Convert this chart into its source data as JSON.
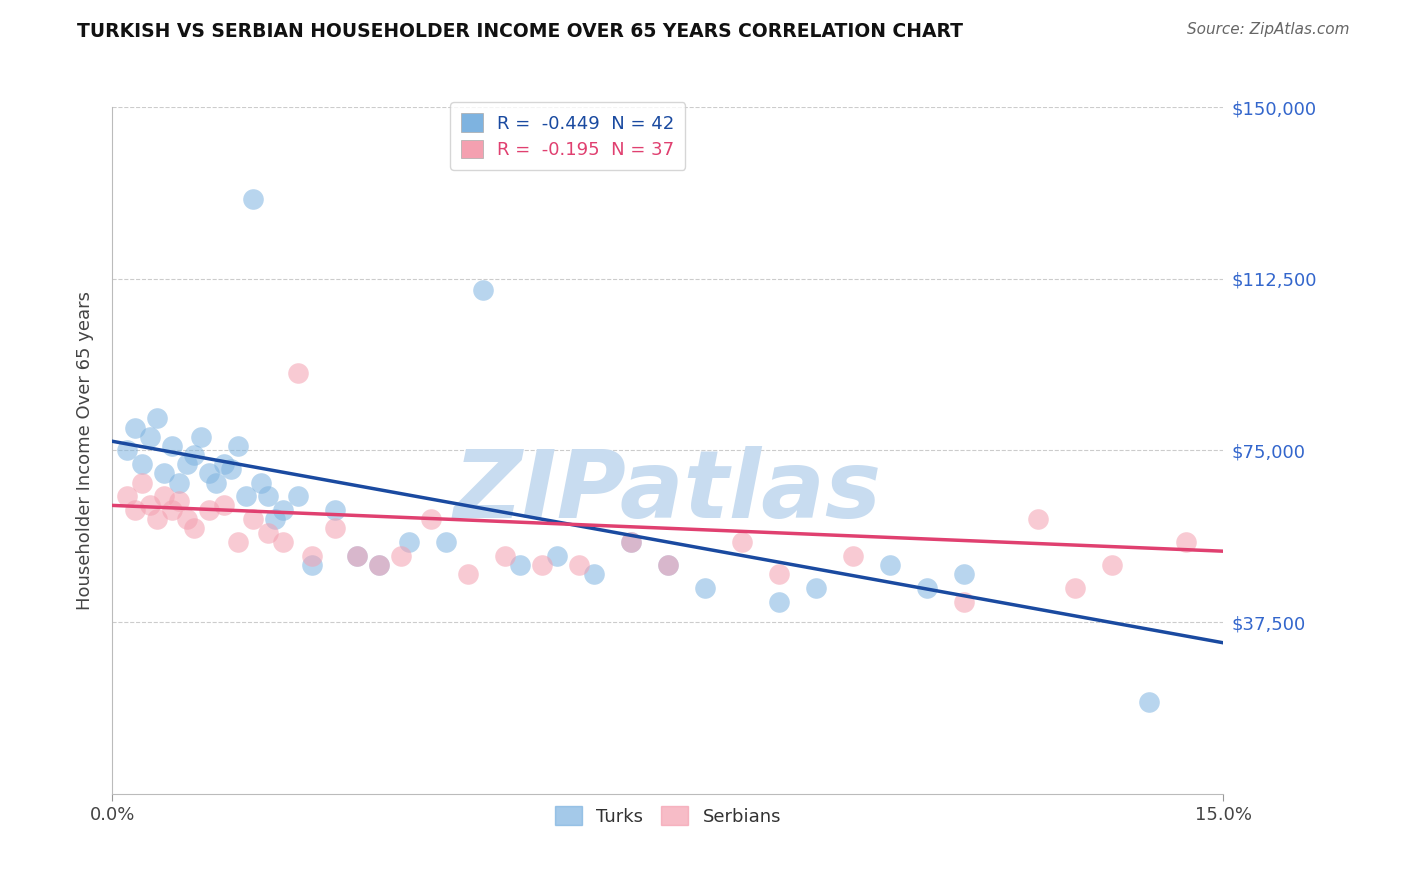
{
  "title": "TURKISH VS SERBIAN HOUSEHOLDER INCOME OVER 65 YEARS CORRELATION CHART",
  "source": "Source: ZipAtlas.com",
  "ylabel": "Householder Income Over 65 years",
  "xlim": [
    0.0,
    15.0
  ],
  "ylim": [
    0,
    150000
  ],
  "turks_R": -0.449,
  "turks_N": 42,
  "serbians_R": -0.195,
  "serbians_N": 37,
  "blue_color": "#7EB3E0",
  "pink_color": "#F4A0B0",
  "blue_line_color": "#1A4AA0",
  "pink_line_color": "#E04070",
  "watermark_color": "#C8DCF0",
  "turks_x": [
    0.2,
    0.3,
    0.4,
    0.5,
    0.6,
    0.7,
    0.8,
    0.9,
    1.0,
    1.1,
    1.2,
    1.3,
    1.4,
    1.5,
    1.6,
    1.7,
    1.8,
    1.9,
    2.0,
    2.1,
    2.2,
    2.3,
    2.5,
    2.7,
    3.0,
    3.3,
    3.6,
    4.0,
    4.5,
    5.0,
    5.5,
    6.0,
    6.5,
    7.0,
    7.5,
    8.0,
    9.0,
    9.5,
    10.5,
    11.0,
    11.5,
    14.0
  ],
  "turks_y": [
    75000,
    80000,
    72000,
    78000,
    82000,
    70000,
    76000,
    68000,
    72000,
    74000,
    78000,
    70000,
    68000,
    72000,
    71000,
    76000,
    65000,
    130000,
    68000,
    65000,
    60000,
    62000,
    65000,
    50000,
    62000,
    52000,
    50000,
    55000,
    55000,
    110000,
    50000,
    52000,
    48000,
    55000,
    50000,
    45000,
    42000,
    45000,
    50000,
    45000,
    48000,
    20000
  ],
  "serbians_x": [
    0.2,
    0.3,
    0.4,
    0.5,
    0.6,
    0.7,
    0.8,
    0.9,
    1.0,
    1.1,
    1.3,
    1.5,
    1.7,
    1.9,
    2.1,
    2.3,
    2.5,
    2.7,
    3.0,
    3.3,
    3.6,
    3.9,
    4.3,
    4.8,
    5.3,
    5.8,
    6.3,
    7.0,
    7.5,
    8.5,
    9.0,
    10.0,
    11.5,
    12.5,
    13.0,
    13.5,
    14.5
  ],
  "serbians_y": [
    65000,
    62000,
    68000,
    63000,
    60000,
    65000,
    62000,
    64000,
    60000,
    58000,
    62000,
    63000,
    55000,
    60000,
    57000,
    55000,
    92000,
    52000,
    58000,
    52000,
    50000,
    52000,
    60000,
    48000,
    52000,
    50000,
    50000,
    55000,
    50000,
    55000,
    48000,
    52000,
    42000,
    60000,
    45000,
    50000,
    55000
  ],
  "turks_line_x0": 0.0,
  "turks_line_y0": 77000,
  "turks_line_x1": 15.0,
  "turks_line_y1": 33000,
  "serbians_line_x0": 0.0,
  "serbians_line_y0": 63000,
  "serbians_line_x1": 15.0,
  "serbians_line_y1": 53000
}
